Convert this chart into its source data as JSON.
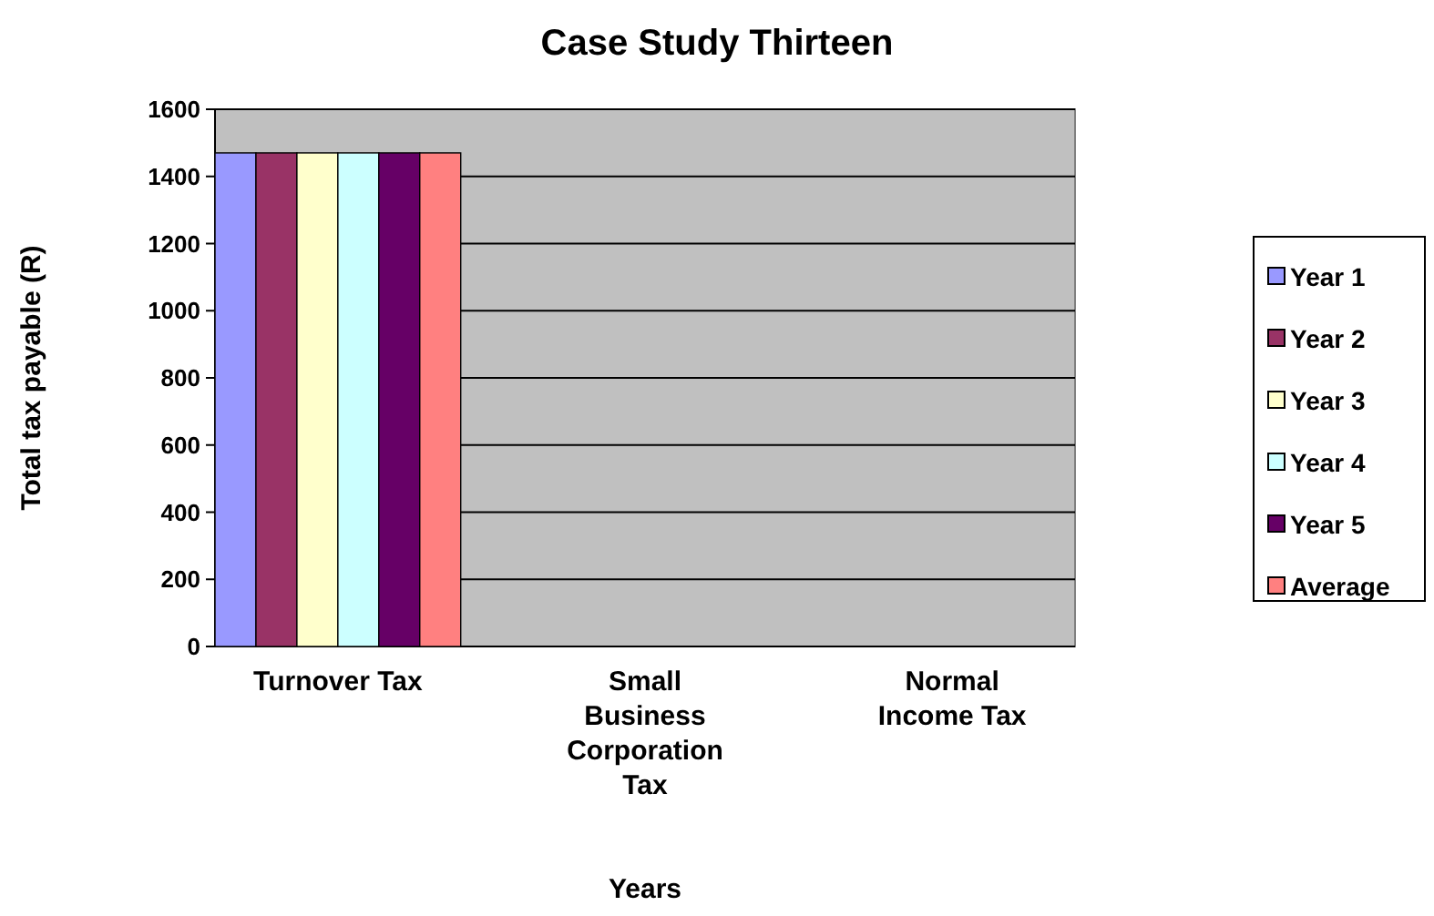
{
  "chart_data": {
    "type": "bar",
    "title": "Case Study Thirteen",
    "xlabel": "Years",
    "ylabel": "Total tax payable (R)",
    "categories": [
      "Turnover Tax",
      "Small Business Corporation Tax",
      "Normal Income Tax"
    ],
    "series": [
      {
        "name": "Year 1",
        "color": "#9999ff",
        "values": [
          1470,
          0,
          0
        ]
      },
      {
        "name": "Year 2",
        "color": "#993366",
        "values": [
          1470,
          0,
          0
        ]
      },
      {
        "name": "Year 3",
        "color": "#ffffcc",
        "values": [
          1470,
          0,
          0
        ]
      },
      {
        "name": "Year 4",
        "color": "#ccffff",
        "values": [
          1470,
          0,
          0
        ]
      },
      {
        "name": "Year 5",
        "color": "#660066",
        "values": [
          1470,
          0,
          0
        ]
      },
      {
        "name": "Average",
        "color": "#ff8080",
        "values": [
          1470,
          0,
          0
        ]
      }
    ],
    "ylim": [
      0,
      1600
    ],
    "yticks": [
      0,
      200,
      400,
      600,
      800,
      1000,
      1200,
      1400,
      1600
    ],
    "grid": "y",
    "legend": "right"
  }
}
